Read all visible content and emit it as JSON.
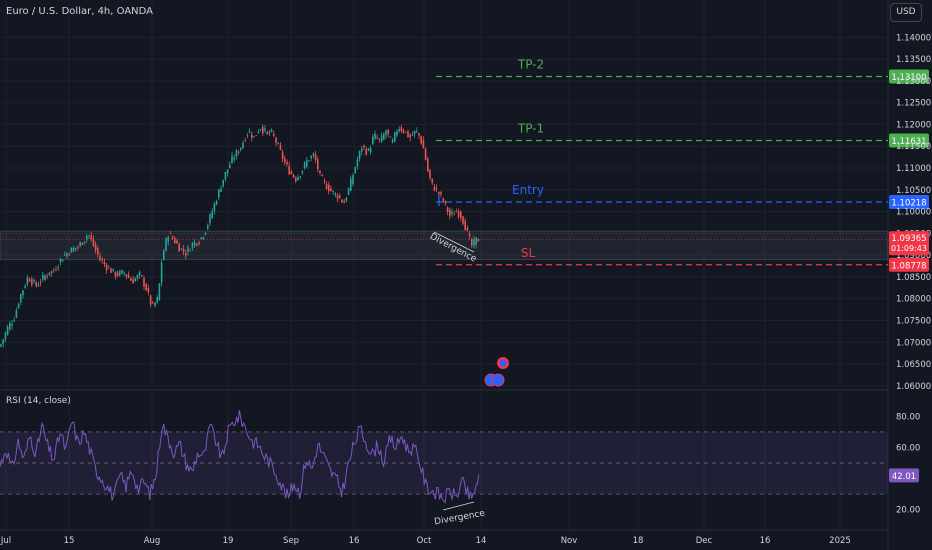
{
  "header": {
    "symbol": "Euro / U.S. Dollar, 4h, OANDA",
    "currency_button": "USD"
  },
  "colors": {
    "background": "#131722",
    "bull": "#26a69a",
    "bear": "#ef5350",
    "green_line": "#4caf50",
    "blue_line": "#2962ff",
    "red_line": "#f23645",
    "rsi_line": "#7e57c2",
    "grid": "#1e222d"
  },
  "chart_data": [
    {
      "type": "candlestick",
      "title": "Euro / U.S. Dollar, 4h, OANDA",
      "x_ticks": [
        "Jul",
        "15",
        "Aug",
        "19",
        "Sep",
        "16",
        "Oct",
        "14",
        "Nov",
        "18",
        "Dec",
        "16",
        "2025"
      ],
      "y_ticks": [
        "1.14000",
        "1.13500",
        "1.13000",
        "1.12500",
        "1.12000",
        "1.11500",
        "1.11000",
        "1.10500",
        "1.10000",
        "1.09500",
        "1.09000",
        "1.08500",
        "1.08000",
        "1.07500",
        "1.07000",
        "1.06500",
        "1.06000"
      ],
      "ylim": [
        1.0595,
        1.1435
      ],
      "price_path": [
        [
          0,
          1.069
        ],
        [
          8,
          1.0735
        ],
        [
          14,
          1.0755
        ],
        [
          20,
          1.0805
        ],
        [
          28,
          1.085
        ],
        [
          36,
          1.083
        ],
        [
          46,
          1.0855
        ],
        [
          54,
          1.0865
        ],
        [
          62,
          1.0895
        ],
        [
          70,
          1.091
        ],
        [
          78,
          1.092
        ],
        [
          84,
          1.0935
        ],
        [
          88,
          1.095
        ],
        [
          94,
          1.092
        ],
        [
          100,
          1.089
        ],
        [
          108,
          1.087
        ],
        [
          116,
          1.0855
        ],
        [
          124,
          1.086
        ],
        [
          132,
          1.084
        ],
        [
          140,
          1.0855
        ],
        [
          146,
          1.0825
        ],
        [
          152,
          1.078
        ],
        [
          158,
          1.08
        ],
        [
          162,
          1.0895
        ],
        [
          168,
          1.095
        ],
        [
          174,
          1.0935
        ],
        [
          180,
          1.0915
        ],
        [
          186,
          1.0905
        ],
        [
          192,
          1.0925
        ],
        [
          200,
          1.0935
        ],
        [
          206,
          1.096
        ],
        [
          212,
          1.1
        ],
        [
          218,
          1.104
        ],
        [
          224,
          1.108
        ],
        [
          232,
          1.112
        ],
        [
          240,
          1.1145
        ],
        [
          248,
          1.1185
        ],
        [
          254,
          1.117
        ],
        [
          260,
          1.1195
        ],
        [
          266,
          1.118
        ],
        [
          272,
          1.118
        ],
        [
          278,
          1.115
        ],
        [
          284,
          1.1115
        ],
        [
          290,
          1.109
        ],
        [
          296,
          1.1075
        ],
        [
          302,
          1.1095
        ],
        [
          308,
          1.112
        ],
        [
          314,
          1.113
        ],
        [
          320,
          1.108
        ],
        [
          326,
          1.106
        ],
        [
          332,
          1.1045
        ],
        [
          338,
          1.1035
        ],
        [
          344,
          1.102
        ],
        [
          350,
          1.106
        ],
        [
          356,
          1.111
        ],
        [
          362,
          1.115
        ],
        [
          368,
          1.1135
        ],
        [
          374,
          1.1175
        ],
        [
          380,
          1.116
        ],
        [
          386,
          1.1185
        ],
        [
          392,
          1.1155
        ],
        [
          398,
          1.1195
        ],
        [
          404,
          1.1185
        ],
        [
          410,
          1.117
        ],
        [
          416,
          1.1185
        ],
        [
          420,
          1.117
        ],
        [
          424,
          1.114
        ],
        [
          428,
          1.109
        ],
        [
          432,
          1.106
        ],
        [
          438,
          1.1045
        ],
        [
          444,
          1.102
        ],
        [
          450,
          1.099
        ],
        [
          456,
          1.1
        ],
        [
          460,
          1.0995
        ],
        [
          464,
          1.0975
        ],
        [
          468,
          1.0945
        ],
        [
          472,
          1.092
        ],
        [
          476,
          1.0935
        ],
        [
          480,
          1.0937
        ]
      ],
      "levels": [
        {
          "label": "TP-2",
          "value": 1.131,
          "value_text": "1.13100",
          "color": "#4caf50"
        },
        {
          "label": "TP-1",
          "value": 1.11631,
          "value_text": "1.11631",
          "color": "#4caf50"
        },
        {
          "label": "Entry",
          "value": 1.10218,
          "value_text": "1.10218",
          "color": "#2962ff"
        },
        {
          "label": "SL",
          "value": 1.08778,
          "value_text": "1.08778",
          "color": "#f23645"
        }
      ],
      "current_price": {
        "value": 1.09365,
        "value_text": "1.09365",
        "countdown": "01:09:43"
      },
      "support_zone": [
        1.089,
        1.0955
      ],
      "annotations": [
        "Divergence"
      ]
    },
    {
      "type": "line",
      "title": "RSI (14, close)",
      "y_ticks": [
        "80.00",
        "60.00",
        "20.00"
      ],
      "ylim": [
        12,
        88
      ],
      "band": [
        30,
        70
      ],
      "midline": 50,
      "current_value": 42.01,
      "current_value_text": "42.01",
      "rsi_path": [
        [
          0,
          48
        ],
        [
          6,
          60
        ],
        [
          12,
          45
        ],
        [
          18,
          64
        ],
        [
          24,
          52
        ],
        [
          30,
          68
        ],
        [
          36,
          56
        ],
        [
          42,
          74
        ],
        [
          48,
          60
        ],
        [
          54,
          52
        ],
        [
          60,
          70
        ],
        [
          66,
          58
        ],
        [
          72,
          78
        ],
        [
          78,
          62
        ],
        [
          84,
          70
        ],
        [
          90,
          58
        ],
        [
          96,
          45
        ],
        [
          102,
          40
        ],
        [
          108,
          34
        ],
        [
          114,
          28
        ],
        [
          120,
          42
        ],
        [
          126,
          35
        ],
        [
          132,
          46
        ],
        [
          138,
          33
        ],
        [
          144,
          38
        ],
        [
          150,
          30
        ],
        [
          156,
          42
        ],
        [
          162,
          76
        ],
        [
          168,
          66
        ],
        [
          174,
          57
        ],
        [
          180,
          62
        ],
        [
          186,
          50
        ],
        [
          192,
          44
        ],
        [
          198,
          57
        ],
        [
          204,
          54
        ],
        [
          210,
          74
        ],
        [
          216,
          64
        ],
        [
          222,
          52
        ],
        [
          228,
          70
        ],
        [
          234,
          77
        ],
        [
          240,
          80
        ],
        [
          246,
          72
        ],
        [
          252,
          64
        ],
        [
          258,
          62
        ],
        [
          264,
          55
        ],
        [
          270,
          50
        ],
        [
          276,
          44
        ],
        [
          282,
          35
        ],
        [
          288,
          28
        ],
        [
          294,
          37
        ],
        [
          300,
          31
        ],
        [
          306,
          53
        ],
        [
          312,
          46
        ],
        [
          318,
          62
        ],
        [
          324,
          54
        ],
        [
          330,
          45
        ],
        [
          336,
          40
        ],
        [
          342,
          31
        ],
        [
          348,
          48
        ],
        [
          354,
          62
        ],
        [
          360,
          72
        ],
        [
          366,
          64
        ],
        [
          372,
          55
        ],
        [
          378,
          62
        ],
        [
          384,
          50
        ],
        [
          390,
          66
        ],
        [
          396,
          60
        ],
        [
          402,
          68
        ],
        [
          408,
          58
        ],
        [
          414,
          60
        ],
        [
          420,
          50
        ],
        [
          426,
          35
        ],
        [
          432,
          32
        ],
        [
          438,
          30
        ],
        [
          444,
          27
        ],
        [
          450,
          32
        ],
        [
          456,
          28
        ],
        [
          462,
          38
        ],
        [
          468,
          30
        ],
        [
          472,
          26
        ],
        [
          476,
          36
        ],
        [
          480,
          42
        ]
      ],
      "annotations": [
        "Divergence"
      ]
    }
  ]
}
